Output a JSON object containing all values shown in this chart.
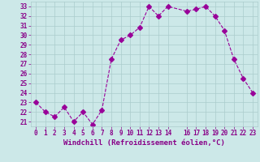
{
  "x": [
    0,
    1,
    2,
    3,
    4,
    5,
    6,
    7,
    8,
    9,
    10,
    11,
    12,
    13,
    14,
    16,
    17,
    18,
    19,
    20,
    21,
    22,
    23
  ],
  "y": [
    23,
    22,
    21.5,
    22.5,
    21,
    22,
    20.7,
    22.2,
    27.5,
    29.5,
    30,
    30.8,
    33,
    32,
    33,
    32.5,
    32.7,
    33,
    32,
    30.5,
    27.5,
    25.5,
    24
  ],
  "line_color": "#990099",
  "marker": "D",
  "marker_color": "#990099",
  "bg_color": "#cce8e8",
  "grid_color": "#aacccc",
  "xlabel": "Windchill (Refroidissement éolien,°C)",
  "ylim": [
    20.5,
    33.5
  ],
  "xlim": [
    -0.5,
    23.5
  ],
  "yticks": [
    21,
    22,
    23,
    24,
    25,
    26,
    27,
    28,
    29,
    30,
    31,
    32,
    33
  ],
  "xticks": [
    0,
    1,
    2,
    3,
    4,
    5,
    6,
    7,
    8,
    9,
    10,
    11,
    12,
    13,
    14,
    16,
    17,
    18,
    19,
    20,
    21,
    22,
    23
  ],
  "font_color": "#880088",
  "xlabel_fontsize": 6.5,
  "tick_fontsize": 5.5,
  "linewidth": 0.8,
  "markersize": 3
}
